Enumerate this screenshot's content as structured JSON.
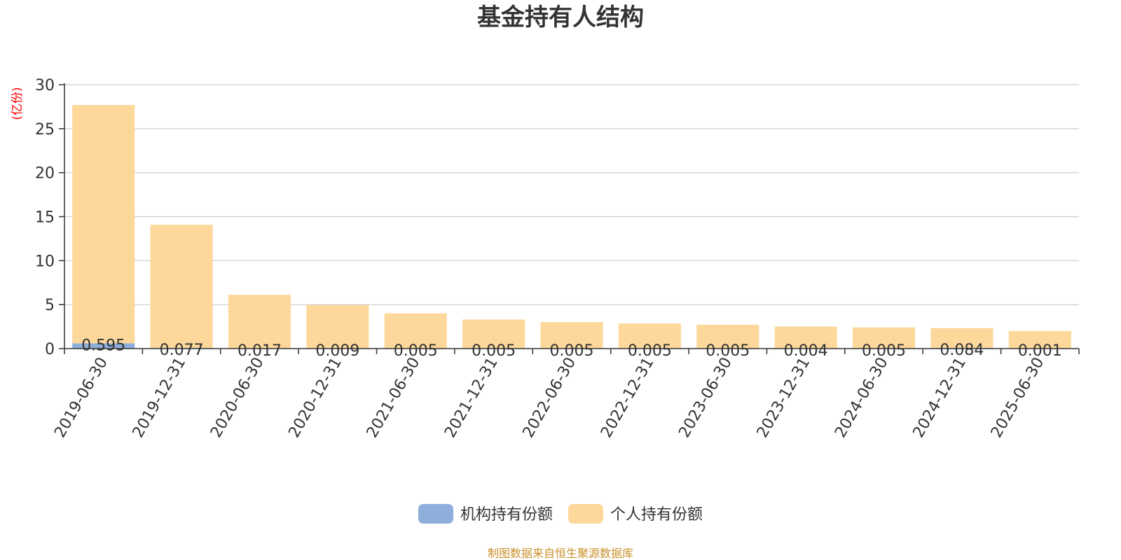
{
  "chart_data": {
    "type": "bar",
    "stacked": true,
    "title": "基金持有人结构",
    "unit_label": "(亿份)",
    "categories": [
      "2019-06-30",
      "2019-12-31",
      "2020-06-30",
      "2020-12-31",
      "2021-06-30",
      "2021-12-31",
      "2022-06-30",
      "2022-12-31",
      "2023-06-30",
      "2023-12-31",
      "2024-06-30",
      "2024-12-31",
      "2025-06-30"
    ],
    "series": [
      {
        "name": "机构持有份额",
        "color": "#8eaedb",
        "values": [
          0.595,
          0.077,
          0.017,
          0.009,
          0.005,
          0.005,
          0.005,
          0.005,
          0.005,
          0.004,
          0.005,
          0.084,
          0.001
        ],
        "labels": [
          "0.595",
          "0.077",
          "0.017",
          "0.009",
          "0.005",
          "0.005",
          "0.005",
          "0.005",
          "0.005",
          "0.004",
          "0.005",
          "0.084",
          "0.001"
        ]
      },
      {
        "name": "个人持有份额",
        "color": "#fdd89a",
        "values": [
          27.1,
          14.0,
          6.1,
          4.95,
          4.0,
          3.3,
          3.0,
          2.85,
          2.7,
          2.5,
          2.4,
          2.25,
          2.0
        ]
      }
    ],
    "ylim": [
      0,
      30
    ],
    "yticks": [
      "0",
      "5",
      "10",
      "15",
      "20",
      "25",
      "30"
    ],
    "grid": true,
    "legend_position": "bottom"
  },
  "source": "制图数据来自恒生聚源数据库",
  "colors": {
    "title": "#333333",
    "unit": "#ff0000",
    "source": "#c8902a",
    "grid": "#cccccc",
    "axis": "#333333",
    "tick": "#333333"
  }
}
